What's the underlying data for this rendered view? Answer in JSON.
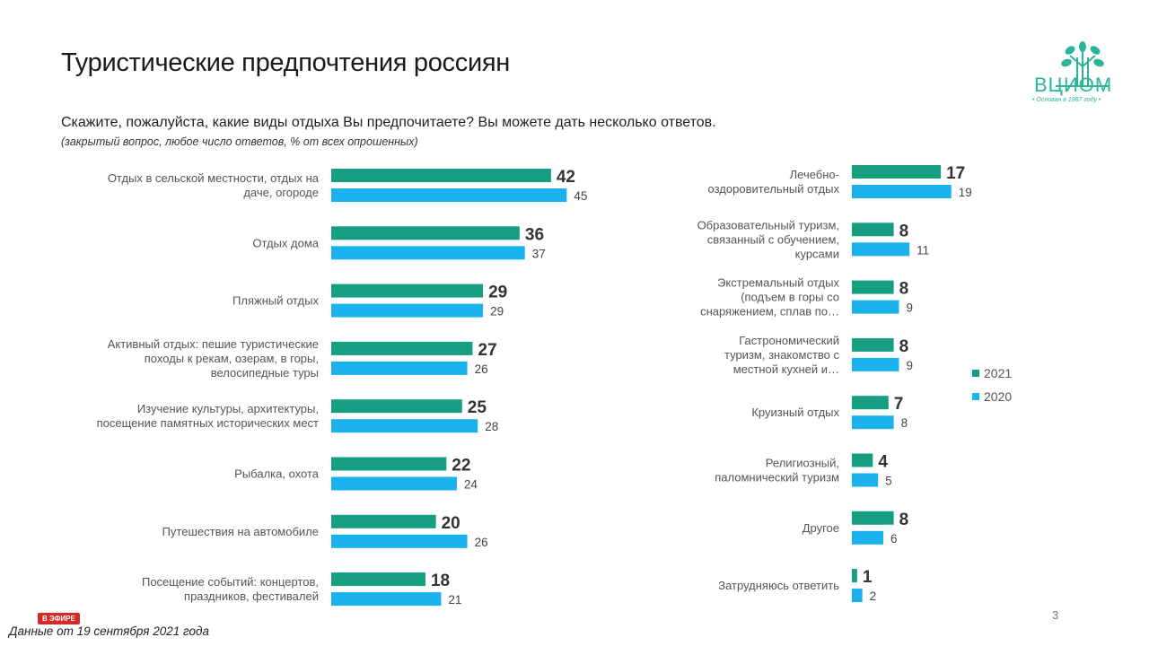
{
  "title": "Туристические предпочтения россиян",
  "question": "Скажите, пожалуйста, какие виды отдыха Вы предпочитаете? Вы можете дать несколько ответов.",
  "note": "(закрытый вопрос, любое число ответов, % от всех опрошенных)",
  "logo": {
    "name": "ВЦИОМ",
    "tagline": "• Основан в 1987 году •"
  },
  "badge": "В ЭФИРЕ",
  "footer": "Данные от 19 сентября 2021 года",
  "page_number": "3",
  "colors": {
    "y2021": "#159e82",
    "y2020": "#19b2ec"
  },
  "chart_data": {
    "type": "bar",
    "orientation": "horizontal",
    "unit": "%",
    "legend": {
      "position": "right",
      "entries": [
        "2021",
        "2020"
      ]
    },
    "categories": [
      [
        "Отдых в сельской местности, отдых на",
        "даче, огороде"
      ],
      [
        "Отдых дома"
      ],
      [
        "Пляжный отдых"
      ],
      [
        "Активный отдых: пешие туристические",
        "походы к рекам, озерам, в горы,",
        "велосипедные туры"
      ],
      [
        "Изучение культуры, архитектуры,",
        "посещение памятных исторических мест"
      ],
      [
        "Рыбалка, охота"
      ],
      [
        "Путешествия на автомобиле"
      ],
      [
        "Посещение событий: концертов,",
        "праздников, фестивалей"
      ],
      [
        "Лечебно-",
        "оздоровительный отдых"
      ],
      [
        "Образовательный туризм,",
        "связанный с обучением,",
        "курсами"
      ],
      [
        "Экстремальный отдых",
        "(подъем в горы со",
        "снаряжением, сплав по…"
      ],
      [
        "Гастрономический",
        "туризм, знакомство с",
        "местной кухней и…"
      ],
      [
        "Круизный отдых"
      ],
      [
        "Религиозный,",
        "паломнический туризм"
      ],
      [
        "Другое"
      ],
      [
        "Затрудняюсь ответить"
      ]
    ],
    "series": [
      {
        "name": "2021",
        "values": [
          42,
          36,
          29,
          27,
          25,
          22,
          20,
          18,
          17,
          8,
          8,
          8,
          7,
          4,
          8,
          1
        ]
      },
      {
        "name": "2020",
        "values": [
          45,
          37,
          29,
          26,
          28,
          24,
          26,
          21,
          19,
          11,
          9,
          9,
          8,
          5,
          6,
          2
        ]
      }
    ]
  }
}
